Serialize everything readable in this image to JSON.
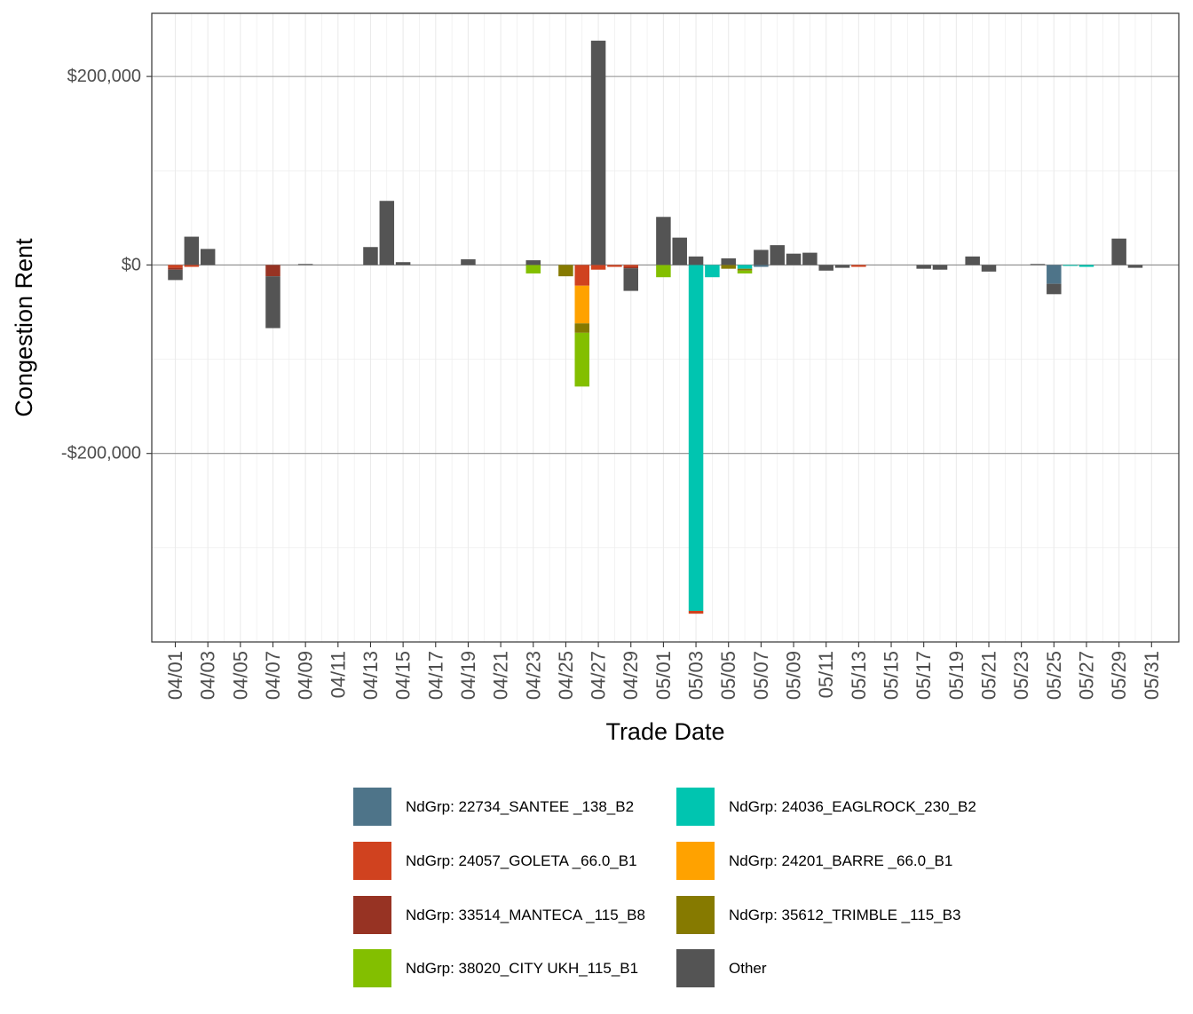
{
  "chart_data": {
    "type": "bar",
    "stacked": true,
    "title": "",
    "xlabel": "Trade Date",
    "ylabel": "Congestion Rent",
    "ylim": [
      -400000,
      267000
    ],
    "y_ticks": [
      {
        "value": 200000,
        "label": "$200,000"
      },
      {
        "value": 0,
        "label": "$0"
      },
      {
        "value": -200000,
        "label": "-$200,000"
      }
    ],
    "grid": true,
    "legend_position": "bottom",
    "categories": [
      "04/01",
      "04/02",
      "04/03",
      "04/04",
      "04/05",
      "04/06",
      "04/07",
      "04/08",
      "04/09",
      "04/10",
      "04/11",
      "04/12",
      "04/13",
      "04/14",
      "04/15",
      "04/16",
      "04/17",
      "04/18",
      "04/19",
      "04/20",
      "04/21",
      "04/22",
      "04/23",
      "04/24",
      "04/25",
      "04/26",
      "04/27",
      "04/28",
      "04/29",
      "04/30",
      "05/01",
      "05/02",
      "05/03",
      "05/04",
      "05/05",
      "05/06",
      "05/07",
      "05/08",
      "05/09",
      "05/10",
      "05/11",
      "05/12",
      "05/13",
      "05/14",
      "05/15",
      "05/16",
      "05/17",
      "05/18",
      "05/19",
      "05/20",
      "05/21",
      "05/22",
      "05/23",
      "05/24",
      "05/25",
      "05/26",
      "05/27",
      "05/28",
      "05/29",
      "05/30",
      "05/31"
    ],
    "tick_labels": [
      "04/01",
      "04/03",
      "04/05",
      "04/07",
      "04/09",
      "04/11",
      "04/13",
      "04/15",
      "04/17",
      "04/19",
      "04/21",
      "04/23",
      "04/25",
      "04/27",
      "04/29",
      "05/01",
      "05/03",
      "05/05",
      "05/07",
      "05/09",
      "05/11",
      "05/13",
      "05/15",
      "05/17",
      "05/19",
      "05/21",
      "05/23",
      "05/25",
      "05/27",
      "05/29",
      "05/31"
    ],
    "series": [
      {
        "name": "NdGrp: 22734_SANTEE _138_B2",
        "color": "#4e7489",
        "values": [
          0,
          0,
          0,
          0,
          0,
          0,
          0,
          0,
          0,
          0,
          0,
          0,
          0,
          0,
          0,
          0,
          0,
          0,
          0,
          0,
          0,
          0,
          0,
          0,
          0,
          0,
          0,
          0,
          0,
          0,
          0,
          0,
          0,
          0,
          0,
          0,
          -2000,
          0,
          0,
          0,
          0,
          0,
          0,
          0,
          0,
          0,
          0,
          0,
          0,
          0,
          0,
          0,
          0,
          0,
          -20000,
          0,
          0,
          0,
          0,
          0,
          0
        ]
      },
      {
        "name": "NdGrp: 24036_EAGLROCK_230_B2",
        "color": "#00c5b0",
        "values": [
          0,
          0,
          0,
          0,
          0,
          0,
          0,
          0,
          0,
          0,
          0,
          0,
          0,
          0,
          0,
          0,
          0,
          0,
          0,
          0,
          0,
          0,
          0,
          0,
          0,
          0,
          0,
          0,
          0,
          0,
          0,
          0,
          -367000,
          -13000,
          0,
          -4000,
          0,
          0,
          0,
          0,
          0,
          0,
          0,
          0,
          0,
          0,
          0,
          0,
          0,
          0,
          0,
          0,
          0,
          0,
          0,
          -1000,
          -2000,
          0,
          0,
          0,
          0
        ]
      },
      {
        "name": "NdGrp: 24057_GOLETA _66.0_B1",
        "color": "#d0421f",
        "values": [
          -3000,
          -2000,
          0,
          0,
          0,
          0,
          0,
          0,
          0,
          0,
          0,
          0,
          0,
          0,
          0,
          0,
          0,
          0,
          0,
          0,
          0,
          0,
          0,
          0,
          0,
          -22000,
          -5000,
          -2000,
          -2000,
          0,
          0,
          0,
          -3000,
          0,
          0,
          0,
          0,
          0,
          0,
          0,
          0,
          0,
          -2000,
          0,
          0,
          0,
          0,
          0,
          0,
          0,
          0,
          0,
          0,
          0,
          0,
          0,
          0,
          0,
          0,
          0,
          0
        ]
      },
      {
        "name": "NdGrp: 24201_BARRE _66.0_B1",
        "color": "#ffa200",
        "values": [
          0,
          0,
          0,
          0,
          0,
          0,
          0,
          0,
          0,
          0,
          0,
          0,
          0,
          0,
          0,
          0,
          0,
          0,
          0,
          0,
          0,
          0,
          0,
          0,
          0,
          -40000,
          0,
          0,
          0,
          0,
          0,
          0,
          0,
          0,
          0,
          0,
          0,
          0,
          0,
          0,
          0,
          0,
          0,
          0,
          0,
          0,
          0,
          0,
          0,
          0,
          0,
          0,
          0,
          0,
          0,
          0,
          0,
          0,
          0,
          0,
          0
        ]
      },
      {
        "name": "NdGrp: 33514_MANTECA _115_B8",
        "color": "#973323",
        "values": [
          -2000,
          0,
          0,
          0,
          0,
          0,
          -12000,
          0,
          0,
          0,
          0,
          0,
          0,
          0,
          0,
          0,
          0,
          0,
          0,
          0,
          0,
          0,
          0,
          0,
          0,
          0,
          0,
          0,
          -1500,
          0,
          0,
          0,
          0,
          0,
          0,
          0,
          0,
          0,
          0,
          0,
          0,
          0,
          0,
          0,
          0,
          0,
          0,
          0,
          0,
          0,
          0,
          0,
          0,
          0,
          0,
          0,
          0,
          0,
          0,
          0,
          0
        ]
      },
      {
        "name": "NdGrp: 35612_TRIMBLE _115_B3",
        "color": "#867a00",
        "values": [
          0,
          0,
          0,
          0,
          0,
          0,
          0,
          0,
          0,
          0,
          0,
          0,
          0,
          0,
          0,
          0,
          0,
          0,
          0,
          0,
          0,
          0,
          0,
          0,
          -12000,
          -10000,
          0,
          0,
          0,
          0,
          0,
          0,
          0,
          0,
          -4000,
          -2000,
          0,
          0,
          0,
          0,
          0,
          0,
          0,
          0,
          0,
          0,
          0,
          0,
          0,
          0,
          0,
          0,
          0,
          0,
          0,
          0,
          0,
          0,
          0,
          0,
          0
        ]
      },
      {
        "name": "NdGrp: 38020_CITY UKH_115_B1",
        "color": "#83bf00",
        "values": [
          0,
          0,
          0,
          0,
          0,
          0,
          0,
          0,
          0,
          0,
          0,
          0,
          0,
          0,
          0,
          0,
          0,
          0,
          0,
          0,
          0,
          0,
          -9000,
          0,
          0,
          -57000,
          0,
          0,
          0,
          0,
          -13000,
          0,
          0,
          0,
          0,
          -3000,
          0,
          0,
          0,
          0,
          0,
          0,
          0,
          0,
          0,
          0,
          0,
          0,
          0,
          0,
          0,
          0,
          0,
          0,
          0,
          0,
          0,
          0,
          0,
          0,
          0
        ]
      },
      {
        "name": "Other",
        "color": "#545454",
        "values": [
          -11000,
          30000,
          17000,
          0,
          0,
          0,
          -55000,
          0,
          1000,
          0,
          0,
          0,
          19000,
          68000,
          3000,
          0,
          0,
          0,
          6000,
          0,
          0,
          0,
          5000,
          0,
          0,
          0,
          238000,
          0,
          -24000,
          0,
          51000,
          29000,
          9000,
          0,
          7000,
          0,
          16000,
          21000,
          12000,
          13000,
          -6000,
          -3000,
          0,
          0,
          0,
          0,
          -4000,
          -5000,
          0,
          9000,
          -7000,
          0,
          0,
          1000,
          -11000,
          0,
          0,
          0,
          28000,
          -3000,
          0
        ]
      }
    ]
  }
}
